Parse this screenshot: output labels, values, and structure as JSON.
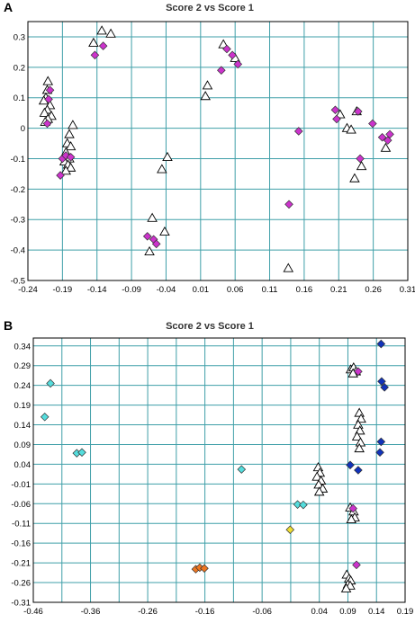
{
  "chart_data": [
    {
      "panel": "A",
      "type": "scatter",
      "title": "Score 2 vs Score 1",
      "xlabel": "",
      "ylabel": "",
      "xlim": [
        -0.24,
        0.31
      ],
      "ylim": [
        -0.5,
        0.35
      ],
      "x_ticks": [
        "-0.24",
        "-0.19",
        "-0.14",
        "-0.09",
        "-0.04",
        "0.01",
        "0.06",
        "0.11",
        "0.16",
        "0.21",
        "0.26",
        "0.31"
      ],
      "y_ticks": [
        "0.3",
        "0.2",
        "0.1",
        "0",
        "-0.1",
        "-0.2",
        "-0.3",
        "-0.4",
        "-0.5"
      ],
      "grid": true,
      "series": [
        {
          "marker": "triangle",
          "color": "#ffffff",
          "points": [
            [
              -0.211,
              0.154
            ],
            [
              -0.212,
              0.125
            ],
            [
              -0.214,
              0.1
            ],
            [
              -0.217,
              0.09
            ],
            [
              -0.208,
              0.075
            ],
            [
              -0.212,
              0.06
            ],
            [
              -0.216,
              0.05
            ],
            [
              -0.206,
              0.04
            ],
            [
              -0.211,
              0.03
            ],
            [
              -0.215,
              0.02
            ],
            [
              -0.175,
              0.01
            ],
            [
              -0.18,
              -0.02
            ],
            [
              -0.183,
              -0.05
            ],
            [
              -0.178,
              -0.06
            ],
            [
              -0.185,
              -0.08
            ],
            [
              -0.18,
              -0.1
            ],
            [
              -0.187,
              -0.11
            ],
            [
              -0.182,
              -0.12
            ],
            [
              -0.178,
              -0.13
            ],
            [
              -0.185,
              -0.14
            ],
            [
              -0.145,
              0.28
            ],
            [
              -0.133,
              0.32
            ],
            [
              -0.12,
              0.31
            ],
            [
              -0.046,
              -0.135
            ],
            [
              -0.038,
              -0.095
            ],
            [
              -0.042,
              -0.34
            ],
            [
              -0.06,
              -0.295
            ],
            [
              -0.064,
              -0.405
            ],
            [
              0.017,
              0.105
            ],
            [
              0.02,
              0.14
            ],
            [
              0.043,
              0.275
            ],
            [
              0.06,
              0.23
            ],
            [
              0.137,
              -0.46
            ],
            [
              0.212,
              0.045
            ],
            [
              0.222,
              0.0
            ],
            [
              0.228,
              -0.005
            ],
            [
              0.236,
              0.055
            ],
            [
              0.233,
              -0.165
            ],
            [
              0.243,
              -0.125
            ],
            [
              0.278,
              -0.065
            ]
          ]
        },
        {
          "marker": "diamond",
          "color": "#cc33cc",
          "points": [
            [
              -0.208,
              0.125
            ],
            [
              -0.21,
              0.095
            ],
            [
              -0.212,
              0.015
            ],
            [
              -0.19,
              -0.1
            ],
            [
              -0.193,
              -0.155
            ],
            [
              -0.185,
              -0.09
            ],
            [
              -0.178,
              -0.095
            ],
            [
              -0.143,
              0.24
            ],
            [
              -0.131,
              0.27
            ],
            [
              -0.067,
              -0.355
            ],
            [
              -0.058,
              -0.365
            ],
            [
              -0.054,
              -0.38
            ],
            [
              0.04,
              0.19
            ],
            [
              0.048,
              0.26
            ],
            [
              0.056,
              0.24
            ],
            [
              0.064,
              0.21
            ],
            [
              0.138,
              -0.25
            ],
            [
              0.152,
              -0.01
            ],
            [
              0.205,
              0.06
            ],
            [
              0.207,
              0.03
            ],
            [
              0.238,
              0.055
            ],
            [
              0.241,
              -0.1
            ],
            [
              0.259,
              0.015
            ],
            [
              0.273,
              -0.03
            ],
            [
              0.281,
              -0.04
            ],
            [
              0.284,
              -0.02
            ]
          ]
        }
      ]
    },
    {
      "panel": "B",
      "type": "scatter",
      "title": "Score 2 vs Score 1",
      "xlabel": "",
      "ylabel": "",
      "xlim": [
        -0.46,
        0.19
      ],
      "ylim": [
        -0.31,
        0.36
      ],
      "x_ticks": [
        "-0.46",
        "-0.36",
        "-0.26",
        "-0.16",
        "-0.06",
        "0.04",
        "0.09",
        "0.14",
        "0.19"
      ],
      "x_tick_values": [
        -0.46,
        -0.36,
        -0.26,
        -0.16,
        -0.06,
        0.04,
        0.09,
        0.14,
        0.19
      ],
      "x_grid_values": [
        -0.46,
        -0.41,
        -0.36,
        -0.31,
        -0.26,
        -0.21,
        -0.16,
        -0.11,
        -0.06,
        -0.01,
        0.04,
        0.09,
        0.14,
        0.19
      ],
      "y_ticks": [
        "0.34",
        "0.29",
        "0.24",
        "0.19",
        "0.14",
        "0.09",
        "0.04",
        "-0.01",
        "-0.06",
        "-0.11",
        "-0.16",
        "-0.21",
        "-0.26",
        "-0.31"
      ],
      "grid": true,
      "series": [
        {
          "marker": "triangle",
          "color": "#ffffff",
          "points": [
            [
              0.038,
              0.032
            ],
            [
              0.041,
              0.018
            ],
            [
              0.036,
              0.008
            ],
            [
              0.043,
              -0.002
            ],
            [
              0.039,
              -0.012
            ],
            [
              0.046,
              -0.022
            ],
            [
              0.04,
              -0.03
            ],
            [
              0.095,
              0.28
            ],
            [
              0.1,
              0.285
            ],
            [
              0.104,
              0.275
            ],
            [
              0.099,
              0.27
            ],
            [
              0.11,
              0.17
            ],
            [
              0.113,
              0.155
            ],
            [
              0.108,
              0.14
            ],
            [
              0.111,
              0.125
            ],
            [
              0.106,
              0.11
            ],
            [
              0.112,
              0.095
            ],
            [
              0.11,
              0.08
            ],
            [
              0.094,
              -0.07
            ],
            [
              0.1,
              -0.08
            ],
            [
              0.102,
              -0.095
            ],
            [
              0.096,
              -0.1
            ],
            [
              0.088,
              -0.24
            ],
            [
              0.092,
              -0.25
            ],
            [
              0.095,
              -0.255
            ],
            [
              0.09,
              -0.265
            ],
            [
              0.094,
              -0.268
            ],
            [
              0.087,
              -0.275
            ]
          ]
        },
        {
          "marker": "diamond",
          "color": "#55dddd",
          "points": [
            [
              -0.43,
              0.245
            ],
            [
              -0.44,
              0.16
            ],
            [
              -0.384,
              0.068
            ],
            [
              -0.375,
              0.07
            ],
            [
              -0.096,
              0.027
            ],
            [
              0.002,
              -0.062
            ],
            [
              0.012,
              -0.063
            ]
          ]
        },
        {
          "marker": "diamond",
          "color": "#1133bb",
          "points": [
            [
              0.148,
              0.345
            ],
            [
              0.149,
              0.25
            ],
            [
              0.154,
              0.235
            ],
            [
              0.148,
              0.097
            ],
            [
              0.146,
              0.07
            ],
            [
              0.094,
              0.038
            ],
            [
              0.108,
              0.025
            ]
          ]
        },
        {
          "marker": "diamond",
          "color": "#cc33cc",
          "points": [
            [
              0.099,
              -0.072
            ],
            [
              0.105,
              -0.215
            ],
            [
              0.108,
              0.275
            ]
          ]
        },
        {
          "marker": "diamond",
          "color": "#ee7722",
          "points": [
            [
              -0.176,
              -0.226
            ],
            [
              -0.169,
              -0.222
            ],
            [
              -0.161,
              -0.224
            ]
          ]
        },
        {
          "marker": "diamond",
          "color": "#eedd33",
          "points": [
            [
              -0.011,
              -0.126
            ]
          ]
        }
      ]
    }
  ]
}
